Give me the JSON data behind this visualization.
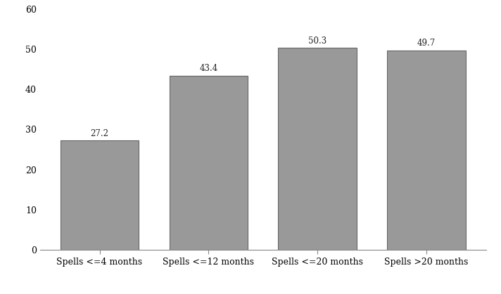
{
  "categories": [
    "Spells <=4 months",
    "Spells <=12 months",
    "Spells <=20 months",
    "Spells >20 months"
  ],
  "values": [
    27.2,
    43.4,
    50.3,
    49.7
  ],
  "bar_color": "#999999",
  "bar_edgecolor": "#666666",
  "ylim": [
    0,
    60
  ],
  "yticks": [
    0,
    10,
    20,
    30,
    40,
    50,
    60
  ],
  "label_fontsize": 8.5,
  "tick_fontsize": 9,
  "bar_width": 0.72,
  "background_color": "#ffffff",
  "label_color": "#222222",
  "spine_color": "#888888"
}
